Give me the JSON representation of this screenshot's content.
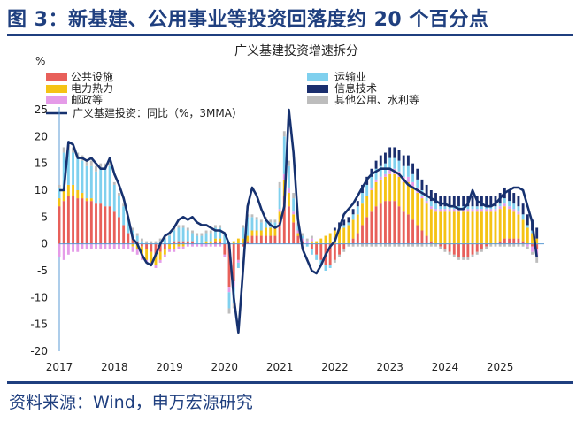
{
  "figure_title": "图 3：新基建、公用事业等投资回落度约 20 个百分点",
  "source_note": "资料来源：Wind，申万宏源研究",
  "chart_data": {
    "type": "bar",
    "title": "广义基建投资增速拆分",
    "ylabel": "%",
    "xlabel": "",
    "ylim": [
      -20,
      25
    ],
    "y_ticks": [
      "25",
      "20",
      "15",
      "10",
      "5",
      "0",
      "-5",
      "-10",
      "-15",
      "-20"
    ],
    "x_ticks": [
      "2017",
      "2018",
      "2019",
      "2020",
      "2021",
      "2022",
      "2023",
      "2024",
      "2025"
    ],
    "stacked": true,
    "legend_position": "top",
    "colors": {
      "公共设施": "#e8605a",
      "电力热力": "#f5c314",
      "邮政等": "#e59be8",
      "运输业": "#7fd0ee",
      "信息技术": "#1a2e6e",
      "其他公用、水利等": "#bdbdbd",
      "line": "#16316f"
    },
    "x": [
      "2017-01",
      "2017-02",
      "2017-03",
      "2017-04",
      "2017-05",
      "2017-06",
      "2017-07",
      "2017-08",
      "2017-09",
      "2017-10",
      "2017-11",
      "2017-12",
      "2018-01",
      "2018-02",
      "2018-03",
      "2018-04",
      "2018-05",
      "2018-06",
      "2018-07",
      "2018-08",
      "2018-09",
      "2018-10",
      "2018-11",
      "2018-12",
      "2019-01",
      "2019-02",
      "2019-03",
      "2019-04",
      "2019-05",
      "2019-06",
      "2019-07",
      "2019-08",
      "2019-09",
      "2019-10",
      "2019-11",
      "2019-12",
      "2020-01",
      "2020-02",
      "2020-03",
      "2020-04",
      "2020-05",
      "2020-06",
      "2020-07",
      "2020-08",
      "2020-09",
      "2020-10",
      "2020-11",
      "2020-12",
      "2021-01",
      "2021-02",
      "2021-03",
      "2021-04",
      "2021-05",
      "2021-06",
      "2021-07",
      "2021-08",
      "2021-09",
      "2021-10",
      "2021-11",
      "2021-12",
      "2022-01",
      "2022-02",
      "2022-03",
      "2022-04",
      "2022-05",
      "2022-06",
      "2022-07",
      "2022-08",
      "2022-09",
      "2022-10",
      "2022-11",
      "2022-12",
      "2023-01",
      "2023-02",
      "2023-03",
      "2023-04",
      "2023-05",
      "2023-06",
      "2023-07",
      "2023-08",
      "2023-09",
      "2023-10",
      "2023-11",
      "2023-12",
      "2024-01",
      "2024-02",
      "2024-03",
      "2024-04",
      "2024-05",
      "2024-06",
      "2024-07",
      "2024-08",
      "2024-09",
      "2024-10",
      "2024-11",
      "2024-12",
      "2025-01",
      "2025-02",
      "2025-03",
      "2025-04",
      "2025-05",
      "2025-06",
      "2025-07",
      "2025-08",
      "2025-09"
    ],
    "series": [
      {
        "name": "公共设施",
        "values": [
          7,
          8,
          9,
          9,
          8.5,
          8.5,
          8,
          8,
          7.5,
          7.5,
          7,
          7,
          6,
          5,
          3.5,
          2,
          1,
          0.5,
          -0.5,
          -1,
          -1.5,
          -2,
          -1.5,
          -1,
          0,
          0.5,
          0.5,
          0.5,
          0.5,
          0.5,
          0,
          0,
          0,
          0,
          0.5,
          0.5,
          -2,
          -8,
          -7,
          -3,
          -0.5,
          0.5,
          1.5,
          1.5,
          1.5,
          1.5,
          1.5,
          1.5,
          4,
          9,
          7,
          4,
          1.5,
          0.5,
          0,
          -1,
          -2,
          -3,
          -4,
          -4,
          -3,
          -2,
          -1,
          0,
          1,
          2,
          3.5,
          5,
          6,
          7,
          7.5,
          8,
          8,
          8,
          7,
          6,
          5.5,
          4.5,
          3.5,
          2.5,
          1.5,
          0.5,
          0,
          -0.5,
          -1,
          -1.5,
          -2,
          -2.5,
          -2.5,
          -2.5,
          -2,
          -1.5,
          -1,
          -0.5,
          0,
          0,
          0.5,
          1,
          1,
          1,
          1,
          0.5,
          0,
          -0.5,
          -1
        ]
      },
      {
        "name": "电力热力",
        "values": [
          1.5,
          2,
          2,
          2,
          1.5,
          1,
          0.5,
          0.5,
          0,
          0,
          0,
          0,
          0,
          0,
          0,
          0,
          -0.5,
          -1,
          -1.5,
          -2,
          -2,
          -2,
          -1.5,
          -1,
          -1,
          -1,
          -0.5,
          -0.5,
          0,
          0,
          0,
          0,
          0.5,
          0.5,
          0.5,
          0.5,
          0,
          0,
          0.5,
          1,
          1,
          1,
          1,
          1,
          1,
          1.5,
          1.5,
          1.5,
          2,
          3,
          2.5,
          1.5,
          0.5,
          0,
          0,
          0.5,
          0.5,
          1,
          1.5,
          2,
          2.5,
          3,
          3,
          3.5,
          3.5,
          3.5,
          4,
          4,
          4,
          4.5,
          4.5,
          4.5,
          5,
          5,
          5.5,
          5.5,
          6,
          6,
          6,
          6,
          6,
          6,
          6,
          6,
          6,
          6,
          6,
          6,
          6,
          6,
          6,
          6,
          6,
          6,
          6,
          6,
          6,
          6,
          5.5,
          5,
          4.5,
          4,
          3,
          2,
          1
        ]
      },
      {
        "name": "邮政等",
        "values": [
          -2.5,
          -3,
          -2,
          -1.5,
          -1.5,
          -1,
          -1,
          -1,
          -1,
          -1,
          -1,
          -1,
          -1,
          -1,
          -1,
          -1,
          -1,
          -1,
          -1,
          -0.5,
          -0.5,
          -0.5,
          -0.5,
          -0.5,
          -0.5,
          -0.5,
          -0.5,
          -0.5,
          -0.5,
          -0.5,
          -0.5,
          -0.5,
          -0.5,
          -0.5,
          -0.5,
          -0.5,
          -0.5,
          -1,
          -1,
          -0.5,
          0,
          0,
          0,
          0,
          0,
          0,
          0,
          0,
          0.5,
          1,
          1,
          0.5,
          0.5,
          0.5,
          0.5,
          0.5,
          0,
          0,
          0,
          0,
          0,
          0,
          0,
          0,
          0,
          0,
          0,
          0,
          0.5,
          0.5,
          0.5,
          0.5,
          1,
          1,
          1,
          1,
          1,
          1,
          1,
          0.5,
          0.5,
          0.5,
          0.5,
          0.5,
          0.5,
          0.5,
          0.5,
          0.5,
          0.5,
          0.5,
          0.5,
          0.5,
          0.5,
          0.5,
          0.5,
          0.5,
          0.5,
          0.5,
          0.5,
          0.5,
          0.5,
          0,
          -0.5,
          -1,
          -1.5
        ]
      },
      {
        "name": "运输业",
        "values": [
          2,
          7,
          6.5,
          6,
          6,
          6,
          6,
          6,
          6,
          6.5,
          7,
          7.5,
          5,
          4,
          3.5,
          2.5,
          1.5,
          1,
          0.5,
          0,
          0,
          0,
          0.5,
          1,
          1.5,
          2,
          2.5,
          2.5,
          2,
          1.5,
          1.5,
          1.5,
          1.5,
          1.5,
          2,
          2,
          2,
          -3,
          -3,
          -1,
          2,
          3.5,
          2.5,
          2,
          1.5,
          1.5,
          1,
          1,
          4,
          7,
          4,
          2.5,
          1,
          0.5,
          -0.5,
          -1,
          -1,
          -1,
          -1,
          -0.5,
          0,
          0,
          0.5,
          0.5,
          1,
          1.5,
          2,
          2,
          2,
          2,
          2,
          2,
          2,
          2,
          2,
          2,
          2,
          1.5,
          1.5,
          1,
          1,
          1,
          1,
          0.5,
          0.5,
          0.5,
          0.5,
          0.5,
          0.5,
          0.5,
          0.5,
          0.5,
          0.5,
          0.5,
          0.5,
          0.5,
          0.5,
          1,
          1,
          1,
          1,
          1,
          0.5,
          0.5,
          0
        ]
      },
      {
        "name": "信息技术",
        "values": [
          0,
          0,
          0,
          0,
          0,
          0,
          0,
          0,
          0,
          0,
          0,
          0,
          0,
          0,
          0,
          0,
          0,
          0,
          0,
          0,
          0,
          0,
          0,
          0,
          0,
          0,
          0,
          0,
          0,
          0,
          0,
          0,
          0,
          0,
          0,
          0,
          0,
          0,
          0,
          0,
          0,
          0,
          0,
          0,
          0,
          0,
          0,
          0,
          0,
          0,
          0,
          0,
          0,
          0,
          0,
          0,
          0,
          0,
          0,
          0,
          0.5,
          1,
          1,
          1,
          1,
          1,
          1.5,
          1.5,
          1.5,
          1.5,
          2,
          2,
          2,
          2,
          2,
          2,
          2,
          2,
          2,
          2,
          2,
          2,
          2,
          2,
          2,
          2,
          2,
          2,
          2,
          2,
          2,
          2,
          2,
          2,
          2,
          2,
          2,
          2,
          2,
          2,
          2,
          2,
          2,
          2,
          2
        ]
      },
      {
        "name": "其他公用、水利等",
        "values": [
          0.5,
          1,
          1,
          1,
          1,
          1,
          1,
          1,
          1,
          1,
          1,
          1,
          0.5,
          0.5,
          0.5,
          0.5,
          0.5,
          0.5,
          0.5,
          0.5,
          0.5,
          0.5,
          0.5,
          0.5,
          0.5,
          0.5,
          0.5,
          0.5,
          0.5,
          0.5,
          0.5,
          0.5,
          0.5,
          0.5,
          0.5,
          0.5,
          0,
          -1,
          -1,
          0,
          0.5,
          0.5,
          0.5,
          0.5,
          0.5,
          0.5,
          0.5,
          0.5,
          1,
          1,
          1,
          1,
          0.5,
          0.5,
          0.5,
          0.5,
          0,
          0,
          0,
          0,
          -0.5,
          -0.5,
          -0.5,
          -0.5,
          -0.5,
          -0.5,
          -0.5,
          -0.5,
          -0.5,
          -0.5,
          -0.5,
          -0.5,
          -0.5,
          -0.5,
          -0.5,
          -0.5,
          -0.5,
          -0.5,
          -0.5,
          -0.5,
          -0.5,
          -0.5,
          -0.5,
          -0.5,
          -0.5,
          -0.5,
          -0.5,
          -0.5,
          -0.5,
          -0.5,
          -0.5,
          -0.5,
          -0.5,
          -0.5,
          -0.5,
          -0.5,
          -0.5,
          -0.5,
          -0.5,
          -0.5,
          -0.5,
          -0.5,
          -0.5,
          -0.5,
          -1
        ]
      }
    ],
    "line": {
      "name": "广义基建投资：同比（%，3MMA）",
      "values": [
        10,
        10,
        19,
        18.5,
        16,
        16,
        15.5,
        16,
        15,
        14,
        14,
        16,
        13,
        11,
        8.5,
        5,
        1,
        0,
        -2,
        -3.5,
        -4,
        -2,
        0,
        1.5,
        2,
        3,
        4.5,
        5,
        4.5,
        5,
        4,
        3.5,
        3.5,
        3,
        2.5,
        2.5,
        2,
        0,
        -10,
        -16.5,
        -5,
        7,
        10.5,
        9,
        6.5,
        4.5,
        3.5,
        3,
        3.5,
        7,
        25,
        17,
        4.5,
        -1,
        -3,
        -5,
        -5.5,
        -4,
        -2,
        -0.5,
        0.5,
        3,
        5.5,
        6.5,
        7.5,
        9,
        10.5,
        12,
        13,
        13.5,
        14,
        14,
        14,
        13.5,
        13,
        12,
        11,
        10.5,
        10,
        9.5,
        9,
        8.5,
        8,
        7.5,
        7.5,
        7,
        7,
        6.5,
        6.5,
        7.5,
        10,
        8,
        7.5,
        7,
        7,
        7.5,
        8.5,
        9.5,
        10,
        10.5,
        10.5,
        10,
        7,
        4,
        -2.5
      ]
    }
  }
}
